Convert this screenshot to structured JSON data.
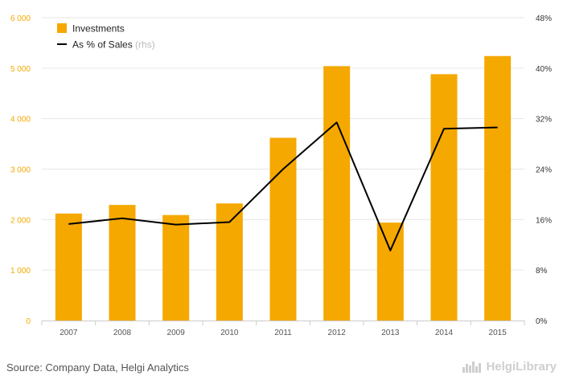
{
  "colors": {
    "bar": "#f5a800",
    "line": "#000000",
    "grid": "#e6e6e6",
    "left_axis_text": "#f5a800",
    "right_axis_text": "#333333",
    "x_axis_text": "#555555",
    "legend_muted": "#bbbbbb"
  },
  "chart_data": {
    "type": "bar",
    "categories": [
      "2007",
      "2008",
      "2009",
      "2010",
      "2011",
      "2012",
      "2013",
      "2014",
      "2015"
    ],
    "series": [
      {
        "name": "Investments",
        "type": "bar",
        "axis": "left",
        "values": [
          2120,
          2290,
          2090,
          2320,
          3620,
          5040,
          1940,
          4880,
          5240
        ]
      },
      {
        "name": "As % of Sales",
        "name_suffix": "(rhs)",
        "type": "line",
        "axis": "right",
        "values": [
          15.3,
          16.2,
          15.2,
          15.6,
          24.0,
          31.4,
          11.1,
          30.4,
          30.6
        ]
      }
    ],
    "y_left": {
      "min": 0,
      "max": 6000,
      "ticks": [
        "0",
        "1 000",
        "2 000",
        "3 000",
        "4 000",
        "5 000",
        "6 000"
      ]
    },
    "y_right": {
      "min": 0,
      "max": 48,
      "ticks": [
        "0%",
        "8%",
        "16%",
        "24%",
        "32%",
        "40%",
        "48%"
      ]
    },
    "grid": true,
    "legend_position": "top-left"
  },
  "footer": {
    "source": "Source: Company Data, Helgi Analytics",
    "brand": "HelgiLibrary"
  }
}
